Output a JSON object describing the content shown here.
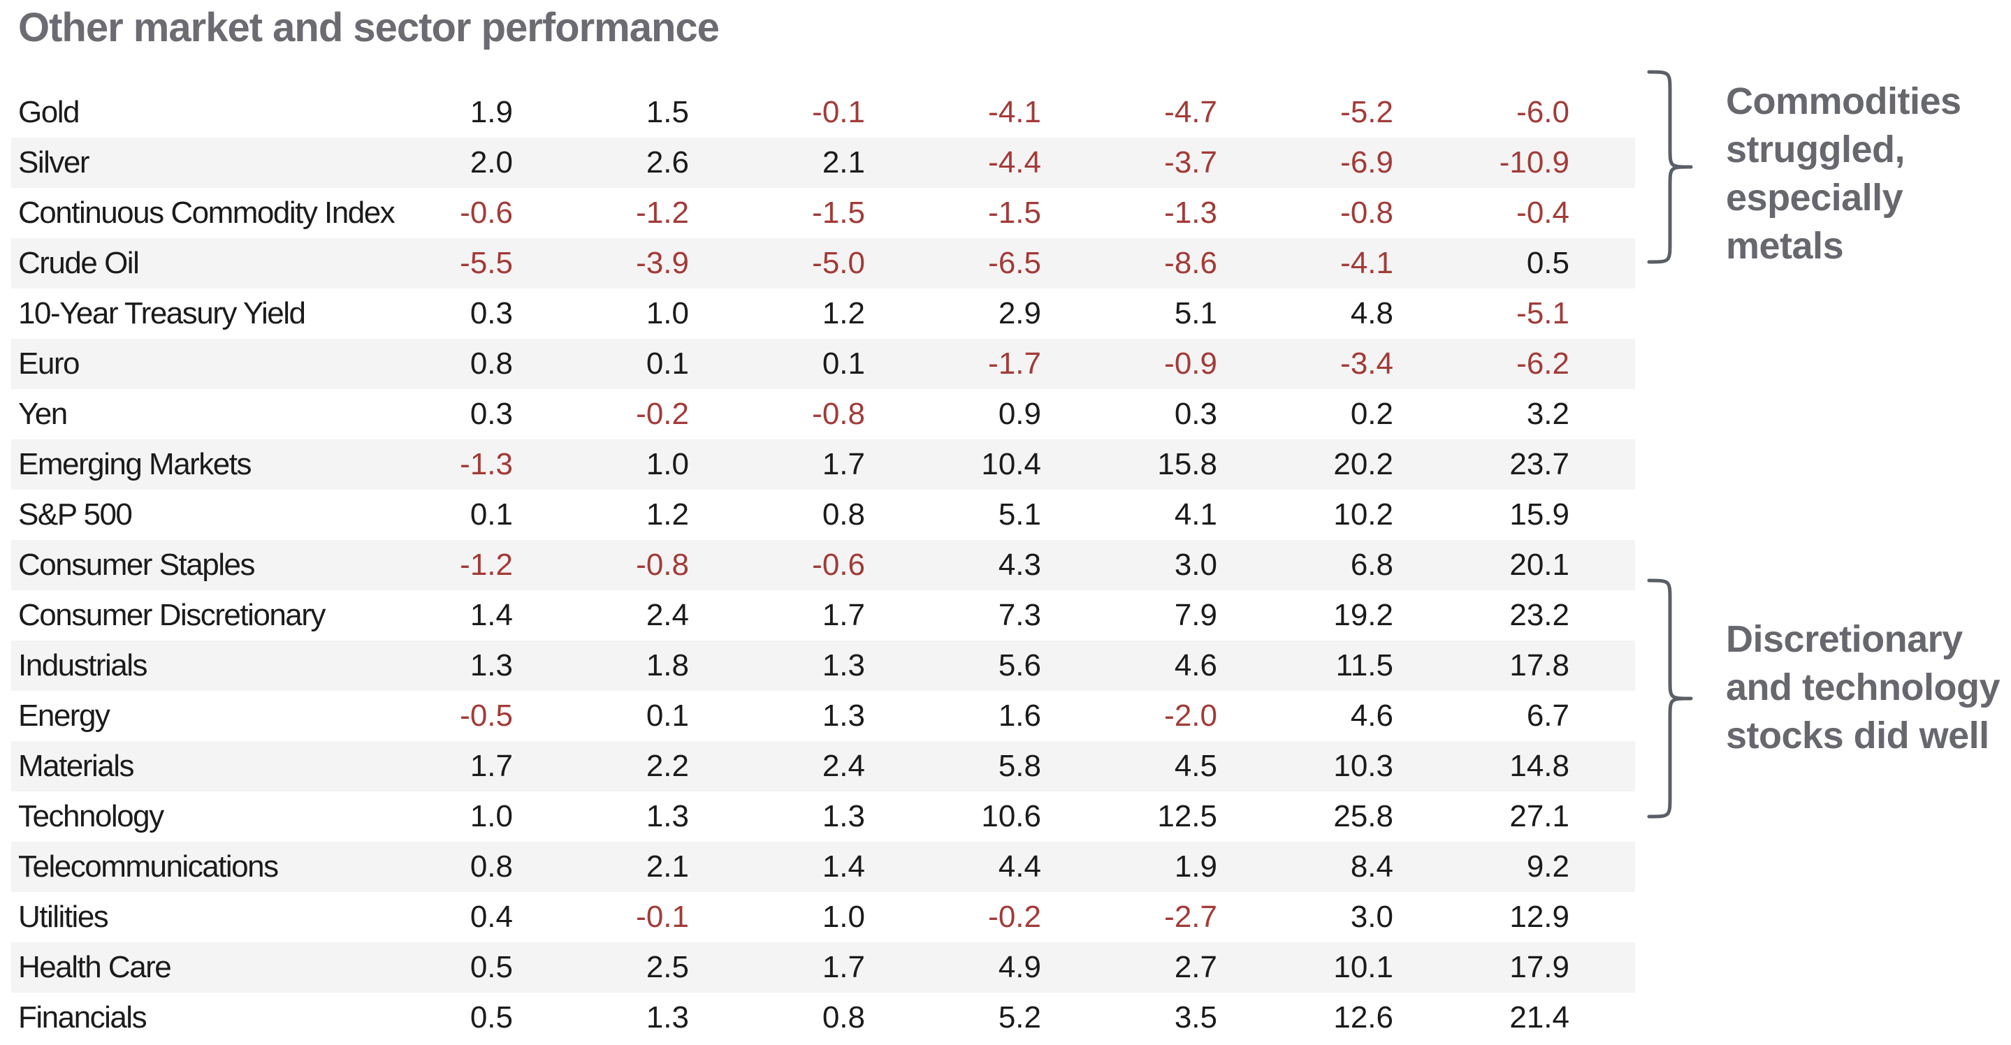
{
  "title": "Other market and sector performance",
  "colors": {
    "title_gray": "#6b6b71",
    "annotation_gray": "#67676e",
    "negative_red": "#a23b38",
    "stripe_gray": "#f4f4f4",
    "text_black": "#1b1b1b",
    "brace_gray": "#5a5e66"
  },
  "chart_data": {
    "type": "table",
    "title": "Other market and sector performance",
    "column_headers": [],
    "value_format": "one_decimal",
    "negative_value_color": "#a23b38",
    "rows": [
      {
        "label": "Gold",
        "values": [
          1.9,
          1.5,
          -0.1,
          -4.1,
          -4.7,
          -5.2,
          -6.0
        ]
      },
      {
        "label": "Silver",
        "values": [
          2.0,
          2.6,
          2.1,
          -4.4,
          -3.7,
          -6.9,
          -10.9
        ]
      },
      {
        "label": "Continuous Commodity Index",
        "values": [
          -0.6,
          -1.2,
          -1.5,
          -1.5,
          -1.3,
          -0.8,
          -0.4
        ]
      },
      {
        "label": "Crude Oil",
        "values": [
          -5.5,
          -3.9,
          -5.0,
          -6.5,
          -8.6,
          -4.1,
          0.5
        ]
      },
      {
        "label": "10-Year Treasury Yield",
        "values": [
          0.3,
          1.0,
          1.2,
          2.9,
          5.1,
          4.8,
          -5.1
        ]
      },
      {
        "label": "Euro",
        "values": [
          0.8,
          0.1,
          0.1,
          -1.7,
          -0.9,
          -3.4,
          -6.2
        ]
      },
      {
        "label": "Yen",
        "values": [
          0.3,
          -0.2,
          -0.8,
          0.9,
          0.3,
          0.2,
          3.2
        ]
      },
      {
        "label": "Emerging Markets",
        "values": [
          -1.3,
          1.0,
          1.7,
          10.4,
          15.8,
          20.2,
          23.7
        ]
      },
      {
        "label": "S&P 500",
        "values": [
          0.1,
          1.2,
          0.8,
          5.1,
          4.1,
          10.2,
          15.9
        ]
      },
      {
        "label": "Consumer Staples",
        "values": [
          -1.2,
          -0.8,
          -0.6,
          4.3,
          3.0,
          6.8,
          20.1
        ]
      },
      {
        "label": "Consumer Discretionary",
        "values": [
          1.4,
          2.4,
          1.7,
          7.3,
          7.9,
          19.2,
          23.2
        ]
      },
      {
        "label": "Industrials",
        "values": [
          1.3,
          1.8,
          1.3,
          5.6,
          4.6,
          11.5,
          17.8
        ]
      },
      {
        "label": "Energy",
        "values": [
          -0.5,
          0.1,
          1.3,
          1.6,
          -2.0,
          4.6,
          6.7
        ]
      },
      {
        "label": "Materials",
        "values": [
          1.7,
          2.2,
          2.4,
          5.8,
          4.5,
          10.3,
          14.8
        ]
      },
      {
        "label": "Technology",
        "values": [
          1.0,
          1.3,
          1.3,
          10.6,
          12.5,
          25.8,
          27.1
        ]
      },
      {
        "label": "Telecommunications",
        "values": [
          0.8,
          2.1,
          1.4,
          4.4,
          1.9,
          8.4,
          9.2
        ]
      },
      {
        "label": "Utilities",
        "values": [
          0.4,
          -0.1,
          1.0,
          -0.2,
          -2.7,
          3.0,
          12.9
        ]
      },
      {
        "label": "Health Care",
        "values": [
          0.5,
          2.5,
          1.7,
          4.9,
          2.7,
          10.1,
          17.9
        ]
      },
      {
        "label": "Financials",
        "values": [
          0.5,
          1.3,
          0.8,
          5.2,
          3.5,
          12.6,
          21.4
        ]
      }
    ],
    "annotations": [
      {
        "text": "Commodities struggled, especially metals",
        "lines": [
          "Commodities",
          "struggled,",
          "especially",
          "metals"
        ],
        "rows_spanned": [
          "Gold",
          "Silver",
          "Continuous Commodity Index",
          "Crude Oil"
        ]
      },
      {
        "text": "Discretionary and technology stocks did well",
        "lines": [
          "Discretionary",
          "and technology",
          "stocks did well"
        ],
        "rows_spanned": [
          "Consumer Discretionary",
          "Industrials",
          "Energy",
          "Materials",
          "Technology"
        ]
      }
    ]
  }
}
